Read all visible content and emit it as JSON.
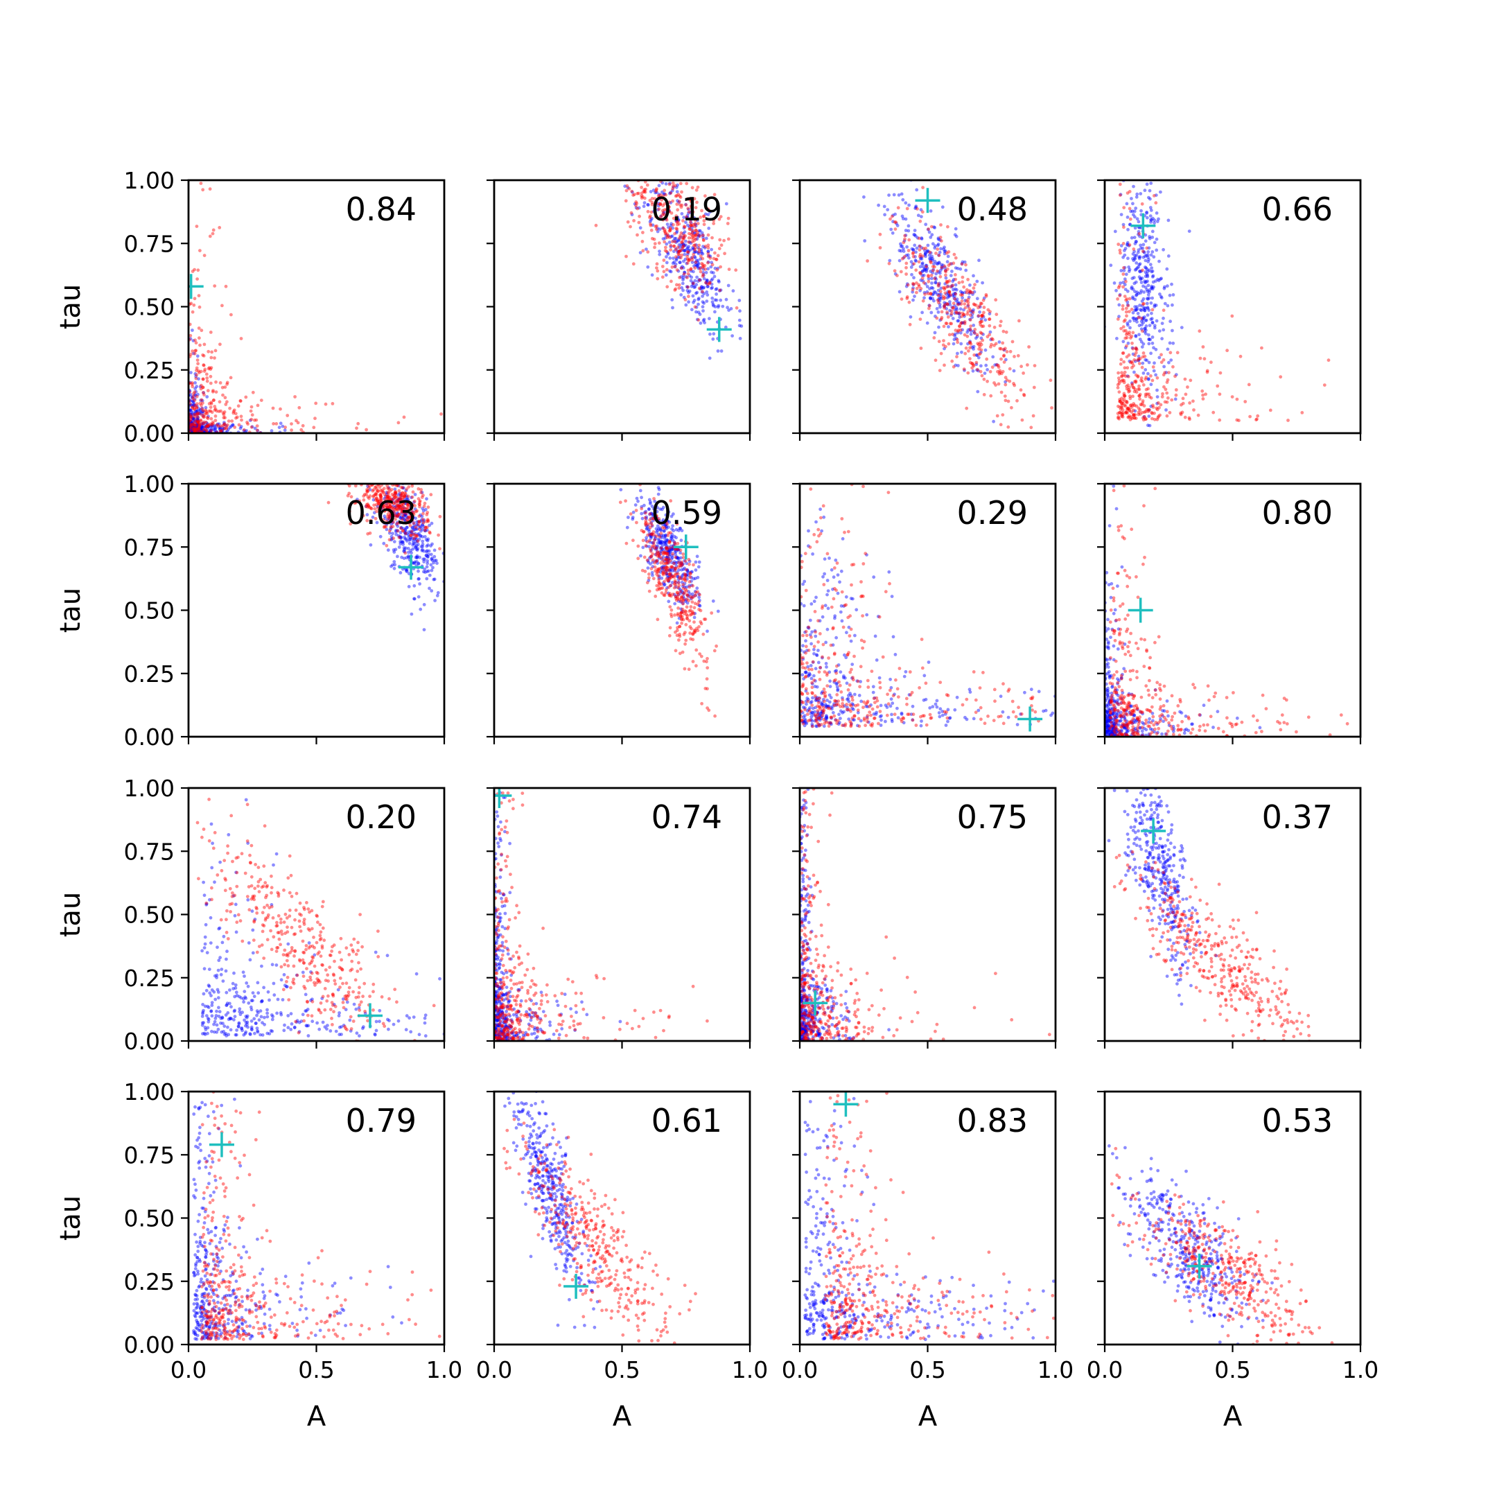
{
  "chart_data": {
    "type": "scatter",
    "grid": false,
    "xlabel": "A",
    "ylabel": "tau",
    "xlim": [
      0.0,
      1.0
    ],
    "ylim": [
      0.0,
      1.0
    ],
    "xticks": [
      "0.0",
      "0.5",
      "1.0"
    ],
    "yticks": [
      "0.00",
      "0.25",
      "0.50",
      "0.75",
      "1.00"
    ],
    "colors": {
      "series_a": "#0000ff",
      "series_b": "#ff0000",
      "marker": "#1fbfbf"
    },
    "panels": [
      {
        "label": "0.84",
        "marker": [
          0.01,
          0.58
        ],
        "blue": {
          "shape": "L",
          "x0": 0.0,
          "y0": 0.0,
          "kx": 0.08,
          "ky": 0.06,
          "n": 380
        },
        "red": {
          "shape": "L",
          "x0": 0.0,
          "y0": 0.0,
          "kx": 0.22,
          "ky": 0.22,
          "n": 320
        }
      },
      {
        "label": "0.19",
        "marker": [
          0.88,
          0.41
        ],
        "blue": {
          "shape": "band",
          "cx": 0.76,
          "cy": 0.7,
          "sx": 0.09,
          "sy": 0.16,
          "rho": -0.7,
          "n": 380
        },
        "red": {
          "shape": "band",
          "cx": 0.72,
          "cy": 0.82,
          "sx": 0.1,
          "sy": 0.14,
          "rho": -0.55,
          "n": 380
        }
      },
      {
        "label": "0.48",
        "marker": [
          0.5,
          0.92
        ],
        "blue": {
          "shape": "band",
          "cx": 0.55,
          "cy": 0.6,
          "sx": 0.1,
          "sy": 0.16,
          "rho": -0.75,
          "n": 380
        },
        "red": {
          "shape": "band",
          "cx": 0.64,
          "cy": 0.46,
          "sx": 0.14,
          "sy": 0.2,
          "rho": -0.8,
          "n": 380
        }
      },
      {
        "label": "0.66",
        "marker": [
          0.15,
          0.82
        ],
        "blue": {
          "shape": "band",
          "cx": 0.15,
          "cy": 0.58,
          "sx": 0.05,
          "sy": 0.22,
          "rho": -0.3,
          "n": 380
        },
        "red": {
          "shape": "L",
          "x0": 0.05,
          "y0": 0.05,
          "kx": 0.18,
          "ky": 0.38,
          "n": 360
        }
      },
      {
        "label": "0.63",
        "marker": [
          0.87,
          0.67
        ],
        "blue": {
          "shape": "band",
          "cx": 0.86,
          "cy": 0.8,
          "sx": 0.06,
          "sy": 0.11,
          "rho": -0.6,
          "n": 380
        },
        "red": {
          "shape": "band",
          "cx": 0.8,
          "cy": 0.92,
          "sx": 0.07,
          "sy": 0.06,
          "rho": -0.4,
          "n": 380
        }
      },
      {
        "label": "0.59",
        "marker": [
          0.75,
          0.75
        ],
        "blue": {
          "shape": "band",
          "cx": 0.68,
          "cy": 0.72,
          "sx": 0.06,
          "sy": 0.11,
          "rho": -0.7,
          "n": 380
        },
        "red": {
          "shape": "band",
          "cx": 0.7,
          "cy": 0.62,
          "sx": 0.07,
          "sy": 0.16,
          "rho": -0.8,
          "n": 380
        }
      },
      {
        "label": "0.29",
        "marker": [
          0.9,
          0.07
        ],
        "blue": {
          "shape": "L",
          "x0": 0.0,
          "y0": 0.04,
          "kx": 0.4,
          "ky": 0.26,
          "n": 380
        },
        "red": {
          "shape": "L",
          "x0": 0.0,
          "y0": 0.04,
          "kx": 0.45,
          "ky": 0.35,
          "n": 380
        }
      },
      {
        "label": "0.80",
        "marker": [
          0.14,
          0.5
        ],
        "blue": {
          "shape": "L",
          "x0": 0.0,
          "y0": 0.0,
          "kx": 0.1,
          "ky": 0.18,
          "n": 380
        },
        "red": {
          "shape": "L",
          "x0": 0.02,
          "y0": 0.0,
          "kx": 0.25,
          "ky": 0.3,
          "n": 360
        }
      },
      {
        "label": "0.20",
        "marker": [
          0.71,
          0.1
        ],
        "blue": {
          "shape": "L",
          "x0": 0.05,
          "y0": 0.02,
          "kx": 0.55,
          "ky": 0.25,
          "n": 380
        },
        "red": {
          "shape": "band",
          "cx": 0.45,
          "cy": 0.36,
          "sx": 0.18,
          "sy": 0.2,
          "rho": -0.8,
          "n": 380
        }
      },
      {
        "label": "0.74",
        "marker": [
          0.02,
          0.97
        ],
        "blue": {
          "shape": "L",
          "x0": 0.0,
          "y0": 0.0,
          "kx": 0.07,
          "ky": 0.3,
          "n": 380
        },
        "red": {
          "shape": "L",
          "x0": 0.0,
          "y0": 0.0,
          "kx": 0.16,
          "ky": 0.38,
          "n": 360
        }
      },
      {
        "label": "0.75",
        "marker": [
          0.06,
          0.15
        ],
        "blue": {
          "shape": "L",
          "x0": 0.0,
          "y0": 0.0,
          "kx": 0.06,
          "ky": 0.32,
          "n": 380
        },
        "red": {
          "shape": "L",
          "x0": 0.0,
          "y0": 0.0,
          "kx": 0.14,
          "ky": 0.4,
          "n": 360
        }
      },
      {
        "label": "0.37",
        "marker": [
          0.19,
          0.83
        ],
        "blue": {
          "shape": "band",
          "cx": 0.22,
          "cy": 0.66,
          "sx": 0.07,
          "sy": 0.2,
          "rho": -0.7,
          "n": 380
        },
        "red": {
          "shape": "band",
          "cx": 0.45,
          "cy": 0.32,
          "sx": 0.18,
          "sy": 0.18,
          "rho": -0.85,
          "n": 380
        }
      },
      {
        "label": "0.79",
        "marker": [
          0.13,
          0.79
        ],
        "blue": {
          "shape": "L",
          "x0": 0.02,
          "y0": 0.02,
          "kx": 0.18,
          "ky": 0.45,
          "n": 380
        },
        "red": {
          "shape": "L",
          "x0": 0.05,
          "y0": 0.02,
          "kx": 0.3,
          "ky": 0.4,
          "n": 380
        }
      },
      {
        "label": "0.61",
        "marker": [
          0.32,
          0.23
        ],
        "blue": {
          "shape": "band",
          "cx": 0.22,
          "cy": 0.62,
          "sx": 0.07,
          "sy": 0.2,
          "rho": -0.8,
          "n": 380
        },
        "red": {
          "shape": "band",
          "cx": 0.4,
          "cy": 0.38,
          "sx": 0.16,
          "sy": 0.22,
          "rho": -0.85,
          "n": 380
        }
      },
      {
        "label": "0.83",
        "marker": [
          0.18,
          0.95
        ],
        "blue": {
          "shape": "L",
          "x0": 0.02,
          "y0": 0.02,
          "kx": 0.3,
          "ky": 0.38,
          "n": 380
        },
        "red": {
          "shape": "L",
          "x0": 0.1,
          "y0": 0.02,
          "kx": 0.32,
          "ky": 0.45,
          "n": 380
        }
      },
      {
        "label": "0.53",
        "marker": [
          0.37,
          0.31
        ],
        "blue": {
          "shape": "band",
          "cx": 0.33,
          "cy": 0.38,
          "sx": 0.12,
          "sy": 0.15,
          "rho": -0.7,
          "n": 380
        },
        "red": {
          "shape": "band",
          "cx": 0.48,
          "cy": 0.28,
          "sx": 0.17,
          "sy": 0.15,
          "rho": -0.75,
          "n": 380
        }
      }
    ]
  }
}
